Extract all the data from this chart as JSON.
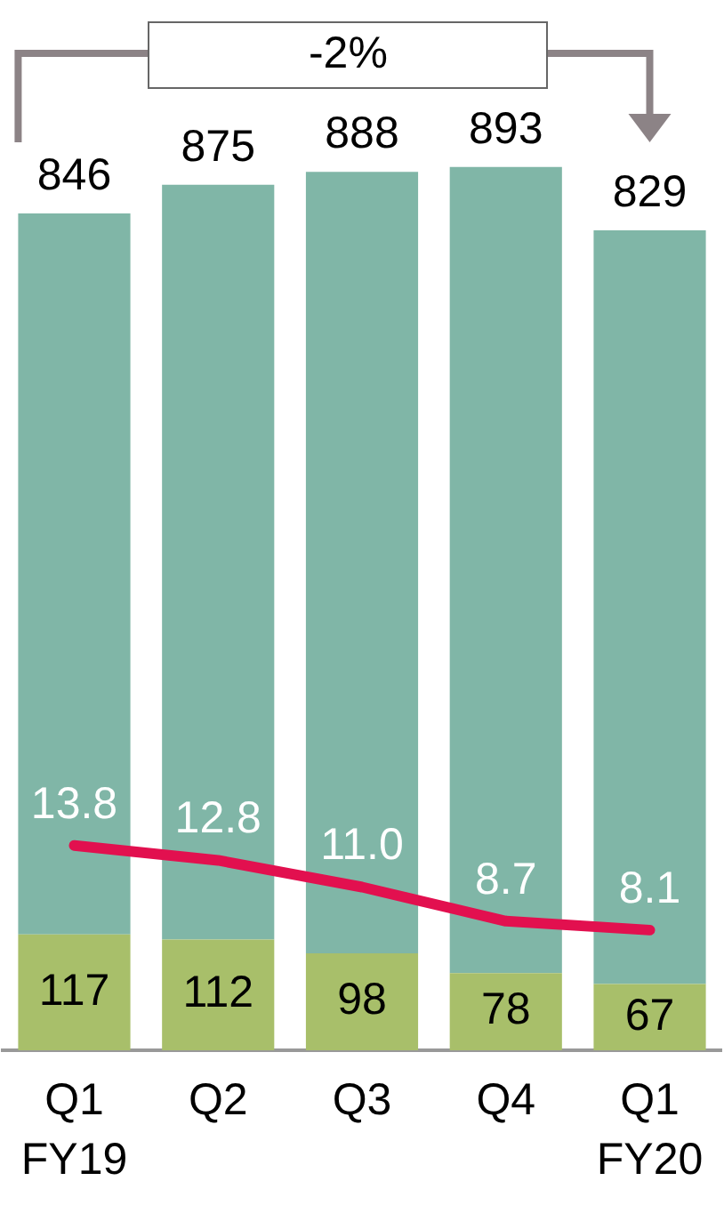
{
  "chart_data": {
    "type": "bar",
    "stacked": true,
    "categories": [
      "Q1\nFY19",
      "Q2",
      "Q3",
      "Q4",
      "Q1\nFY20"
    ],
    "series": [
      {
        "color": "#a8bf6a",
        "values": [
          117,
          112,
          98,
          78,
          67
        ],
        "value_labels": [
          "117",
          "112",
          "98",
          "78",
          "67"
        ]
      },
      {
        "color": "#80b6a7",
        "values": [
          729,
          763,
          790,
          815,
          762
        ]
      },
      {
        "type": "line",
        "axis": "y2",
        "color": "#e2104f",
        "values": [
          13.8,
          12.8,
          11.0,
          8.7,
          8.1
        ],
        "value_labels": [
          "13.8",
          "12.8",
          "11.0",
          "8.7",
          "8.1"
        ],
        "marker": "none"
      }
    ],
    "totals": [
      "846",
      "875",
      "888",
      "893",
      "829"
    ],
    "tick_labels": "x",
    "grid": false,
    "legend": false,
    "annotations": [
      "-2%"
    ]
  }
}
